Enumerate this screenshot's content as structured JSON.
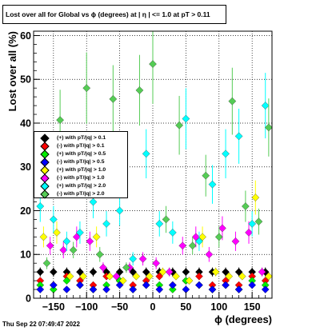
{
  "title": "Lost over all for Global vs ϕ (degrees) at |  η | <= 1.0 at pT > 0.11",
  "timestamp": "Thu Sep 22 07:49:47 2022",
  "chart_data": {
    "type": "scatter",
    "xlabel": "ϕ (degrees)",
    "ylabel": "Lost over all (%)",
    "xlim": [
      -180,
      180
    ],
    "ylim": [
      0,
      61
    ],
    "xticks": [
      -150,
      -100,
      -50,
      0,
      50,
      100,
      150
    ],
    "xtick_labels": [
      "−150",
      "−100",
      "−50",
      "0",
      "50",
      "100",
      "150"
    ],
    "yticks": [
      0,
      10,
      20,
      30,
      40,
      50,
      60
    ],
    "ytick_labels": [
      "0",
      "10",
      "20",
      "30",
      "40",
      "50",
      "60"
    ],
    "grid": true,
    "legend_position": "middle-left",
    "series": [
      {
        "name": "(+) with pT/|q| > 0.1",
        "color": "#000000",
        "x": [
          -170,
          -150,
          -130,
          -110,
          -90,
          -70,
          -50,
          -30,
          -10,
          10,
          30,
          50,
          70,
          90,
          110,
          130,
          150,
          170
        ],
        "y": [
          6,
          6,
          6,
          6,
          6,
          6,
          6,
          6,
          6,
          6,
          6,
          6,
          6,
          6,
          6,
          6,
          6,
          6
        ]
      },
      {
        "name": "(-) with pT/|q| > 0.1",
        "color": "#ff0000",
        "x": [
          -170,
          -150,
          -130,
          -110,
          -90,
          -70,
          -50,
          -30,
          -10,
          10,
          30,
          50,
          70,
          90,
          110,
          130,
          150,
          170
        ],
        "y": [
          4,
          3,
          5,
          4,
          3,
          5,
          4,
          3,
          4,
          5,
          3,
          4,
          5,
          3,
          4,
          3,
          5,
          4
        ]
      },
      {
        "name": "(+) with pT/|q| > 0.5",
        "color": "#00ee00",
        "x": [
          -170,
          -150,
          -130,
          -110,
          -90,
          -70,
          -50,
          -30,
          -10,
          10,
          30,
          50,
          70,
          90,
          110,
          130,
          150,
          170
        ],
        "y": [
          3,
          2,
          4,
          3,
          2,
          3,
          4,
          2,
          3,
          3,
          2,
          4,
          3,
          2,
          3,
          2,
          4,
          3
        ]
      },
      {
        "name": "(-) with pT/|q| > 0.5",
        "color": "#0000ff",
        "x": [
          -170,
          -150,
          -130,
          -110,
          -90,
          -70,
          -50,
          -30,
          -10,
          10,
          30,
          50,
          70,
          90,
          110,
          130,
          150,
          170
        ],
        "y": [
          2,
          3,
          2,
          3,
          2,
          2,
          3,
          2,
          3,
          2,
          3,
          2,
          3,
          2,
          3,
          2,
          3,
          2
        ]
      },
      {
        "name": "(+) with pT/|q| > 1.0",
        "color": "#ffff00",
        "x": [
          -165,
          -145,
          -125,
          -105,
          -85,
          -65,
          -45,
          -25,
          -5,
          15,
          35,
          55,
          75,
          95,
          115,
          135,
          155,
          175
        ],
        "y": [
          14,
          15,
          5,
          5,
          14,
          5,
          4,
          5,
          5,
          6,
          5,
          4,
          14,
          6,
          5,
          5,
          23,
          5
        ]
      },
      {
        "name": "(-) with pT/|q| > 1.0",
        "color": "#ff00ff",
        "x": [
          -155,
          -135,
          -115,
          -95,
          -75,
          -55,
          -35,
          -15,
          5,
          25,
          45,
          65,
          85,
          105,
          125,
          145,
          165
        ],
        "y": [
          12,
          11,
          14,
          13,
          7,
          5,
          7,
          9,
          8,
          6,
          12,
          14,
          10,
          16,
          13,
          15,
          6
        ]
      },
      {
        "name": "(+) with pT/|q| > 2.0",
        "color": "#00ffff",
        "x": [
          -170,
          -150,
          -130,
          -110,
          -90,
          -70,
          -50,
          -30,
          -10,
          10,
          30,
          50,
          70,
          90,
          110,
          130,
          150,
          170
        ],
        "y": [
          21,
          18,
          13,
          15,
          22,
          17,
          20,
          9,
          33,
          17,
          15,
          41,
          13,
          26,
          33,
          37,
          17,
          44
        ]
      },
      {
        "name": "(-) with pT/|q| > 2.0",
        "color": "#55cc55",
        "x": [
          -160,
          -140,
          -120,
          -100,
          -80,
          -60,
          -40,
          -20,
          0,
          20,
          40,
          60,
          80,
          100,
          120,
          140,
          160,
          175
        ],
        "y": [
          8,
          40.7,
          11,
          48,
          10,
          45.5,
          7,
          47.5,
          53.5,
          18,
          39.5,
          12,
          28,
          14,
          45,
          21,
          17.5,
          39
        ]
      }
    ]
  }
}
